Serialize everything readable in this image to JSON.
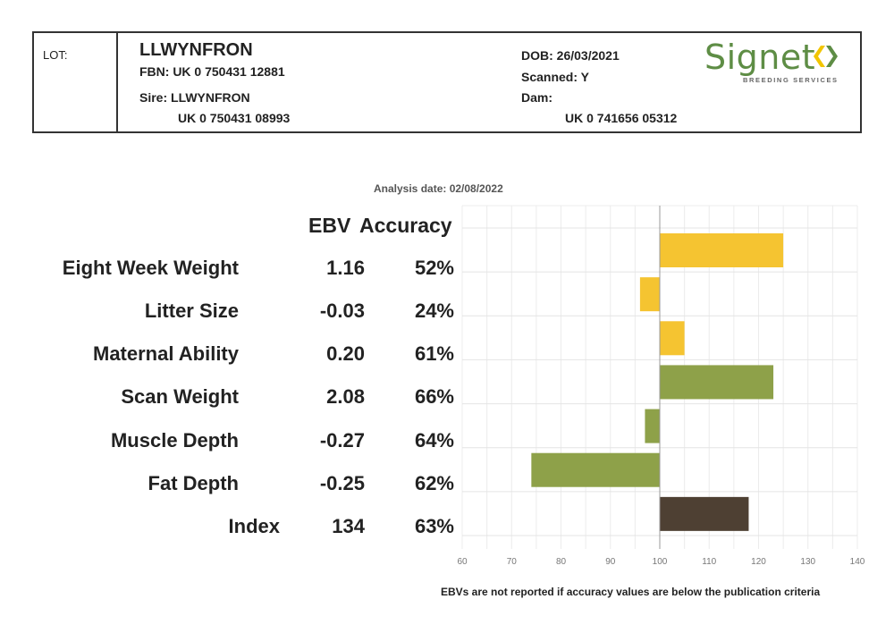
{
  "header": {
    "lot_label": "LOT:",
    "animal_name": "LLWYNFRON",
    "fbn": "FBN: UK 0 750431 12881",
    "sire": "Sire: LLWYNFRON",
    "sire_id": "UK 0 750431 08993",
    "dob": "DOB: 26/03/2021",
    "scanned": "Scanned: Y",
    "dam": "Dam:",
    "dam_id": "UK 0 741656 05312",
    "logo_text": "Signet",
    "logo_subtext": "BREEDING SERVICES"
  },
  "analysis_date": "Analysis date: 02/08/2022",
  "columns": {
    "ebv": "EBV",
    "accuracy": "Accuracy"
  },
  "traits": [
    {
      "name": "Eight Week Weight",
      "ebv": "1.16",
      "accuracy": "52%"
    },
    {
      "name": "Litter Size",
      "ebv": "-0.03",
      "accuracy": "24%"
    },
    {
      "name": "Maternal Ability",
      "ebv": "0.20",
      "accuracy": "61%"
    },
    {
      "name": "Scan Weight",
      "ebv": "2.08",
      "accuracy": "66%"
    },
    {
      "name": "Muscle Depth",
      "ebv": "-0.27",
      "accuracy": "64%"
    },
    {
      "name": "Fat Depth",
      "ebv": "-0.25",
      "accuracy": "62%"
    },
    {
      "name": "Index",
      "ebv": "134",
      "accuracy": "63%"
    }
  ],
  "footnote": "EBVs are not reported if accuracy values are below the publication criteria",
  "colors": {
    "maternal": "#f5c431",
    "terminal": "#8ea149",
    "index": "#4e4033",
    "logo_green": "#5e8d45",
    "logo_yellow": "#f2c500"
  },
  "chart_data": {
    "type": "bar",
    "orientation": "horizontal",
    "categories": [
      "Eight Week Weight",
      "Litter Size",
      "Maternal Ability",
      "Scan Weight",
      "Muscle Depth",
      "Fat Depth",
      "Index"
    ],
    "values": [
      125,
      96,
      105,
      123,
      97,
      74,
      118
    ],
    "baseline": 100,
    "bar_colors": [
      "#f5c431",
      "#f5c431",
      "#f5c431",
      "#8ea149",
      "#8ea149",
      "#8ea149",
      "#4e4033"
    ],
    "xlim": [
      60,
      140
    ],
    "xticks": [
      60,
      70,
      80,
      90,
      100,
      110,
      120,
      130,
      140
    ],
    "grid": true,
    "title": "",
    "xlabel": "",
    "ylabel": ""
  }
}
